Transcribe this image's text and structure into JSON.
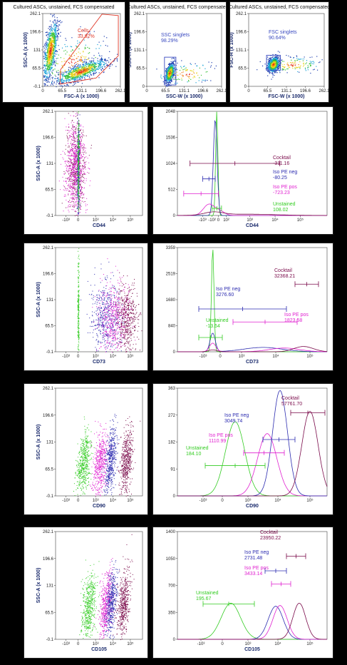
{
  "colors": {
    "cocktail": "#7a0a4a",
    "iso_neg": "#2c2cb0",
    "iso_pos": "#e020d0",
    "unstained": "#33cc22",
    "gate": "#e03a2a",
    "gate_blue": "#3a4ac0"
  },
  "chart_data": [
    {
      "type": "scatter",
      "title": "Cultured ASCs, unstained, FCS compensated",
      "xlabel": "FSC-A (x 1000)",
      "ylabel": "SSC-A (x 1000)",
      "xticks": [
        "0",
        "65.5",
        "131.1",
        "196.6",
        "262.1"
      ],
      "yticks": [
        "-0.1",
        "65.5",
        "131",
        "196.6",
        "262.1"
      ],
      "xlim": [
        0,
        262.1
      ],
      "ylim": [
        -0.1,
        262.1
      ],
      "gate": {
        "label": "Cells",
        "percent": "33.92%"
      }
    },
    {
      "type": "scatter",
      "title": "Cultured ASCs, unstained, FCS compensated",
      "xlabel": "SSC-W (x 1000)",
      "ylabel": "SSC-H (x 1000)",
      "xticks": [
        "0",
        "65.5",
        "131.1",
        "196.6",
        "262.1"
      ],
      "yticks": [
        "0",
        "65.5",
        "131.1",
        "196.6",
        "262.1"
      ],
      "xlim": [
        0,
        262.1
      ],
      "ylim": [
        0,
        262.1
      ],
      "gate": {
        "label": "SSC singlets",
        "percent": "98.29%"
      }
    },
    {
      "type": "scatter",
      "title": "Cultured ASCs, unstained, FCS compensated",
      "xlabel": "FSC-W (x 1000)",
      "ylabel": "FSC-H (x 1000)",
      "xticks": [
        "0",
        "65.5",
        "131.1",
        "196.6",
        "262.1"
      ],
      "yticks": [
        "0",
        "65.5",
        "131.1",
        "196.6",
        "262.1"
      ],
      "xlim": [
        0,
        262.1
      ],
      "ylim": [
        0,
        262.1
      ],
      "gate": {
        "label": "FSC singlets",
        "percent": "90.64%"
      }
    },
    {
      "type": "scatter",
      "marker": "CD44",
      "xlabel": "CD44",
      "ylabel": "SSC-A (x 1000)",
      "xticks": [
        "-10³",
        "0",
        "10³",
        "10⁴",
        "10⁵"
      ],
      "yticks": [
        "-0.1",
        "65.5",
        "131",
        "196.6",
        "262.1"
      ],
      "ylim": [
        -0.1,
        262.1
      ],
      "series": [
        {
          "name": "Cocktail",
          "center_log": 1.9,
          "spread": 0.35
        },
        {
          "name": "Iso PE pos",
          "center_log": 1.5,
          "spread": 0.4
        },
        {
          "name": "Iso PE neg",
          "center_log": 2.0,
          "spread": 0.1
        },
        {
          "name": "Unstained",
          "center_log": 2.0,
          "spread": 0.06
        }
      ]
    },
    {
      "type": "histogram",
      "marker": "CD44",
      "xlabel": "CD44",
      "xticks": [
        "-10³",
        "-10²",
        "0",
        "10²",
        "10³",
        "10⁴",
        "10⁵"
      ],
      "yticks": [
        "0",
        "512",
        "1024",
        "1536",
        "2048"
      ],
      "ylim": [
        0,
        2048
      ],
      "series": [
        {
          "name": "Cocktail",
          "value": "-311.16",
          "bar": [
            -3.2,
            2.5
          ],
          "bar_y": 1024
        },
        {
          "name": "Iso PE neg",
          "value": "-80.25",
          "bar": [
            -2.4,
            -1.6
          ],
          "bar_y": 720
        },
        {
          "name": "Iso PE pos",
          "value": "-723.23",
          "bar": [
            -3.6,
            -1.4
          ],
          "bar_y": 430
        },
        {
          "name": "Unstained",
          "value": "108.02",
          "bar": [
            -1.8,
            -1.2
          ],
          "bar_y": 140
        }
      ]
    },
    {
      "type": "scatter",
      "marker": "CD73",
      "xlabel": "CD73",
      "ylabel": "SSC-A (x 1000)",
      "xticks": [
        "-10³",
        "0",
        "10³",
        "10⁴",
        "10⁵"
      ],
      "yticks": [
        "-0.1",
        "65.5",
        "131",
        "196.6",
        "262.1"
      ],
      "ylim": [
        -0.1,
        262.1
      ]
    },
    {
      "type": "histogram",
      "marker": "CD73",
      "xlabel": "CD73",
      "xticks": [
        "-10³",
        "0",
        "10³",
        "10⁴",
        "10⁵"
      ],
      "yticks": [
        "0",
        "840",
        "1680",
        "2519",
        "3359"
      ],
      "ylim": [
        0,
        3359
      ],
      "series": [
        {
          "name": "Cocktail",
          "value": "32368.21",
          "bar": [
            3.9,
            5.0
          ],
          "bar_y": 2180
        },
        {
          "name": "Iso PE neg",
          "value": "3276.60",
          "bar": [
            -0.6,
            3.5
          ],
          "bar_y": 1380
        },
        {
          "name": "Iso PE pos",
          "value": "1823.58",
          "bar": [
            1.0,
            4.0
          ],
          "bar_y": 960
        },
        {
          "name": "Unstained",
          "value": "-13.64",
          "bar": [
            -0.6,
            0.5
          ],
          "bar_y": 460
        }
      ]
    },
    {
      "type": "scatter",
      "marker": "CD90",
      "xlabel": "CD90",
      "ylabel": "SSC-A (x 1000)",
      "xticks": [
        "-10³",
        "0",
        "10³",
        "10⁴",
        "10⁵"
      ],
      "yticks": [
        "-0.1",
        "65.5",
        "131",
        "196.6",
        "262.1"
      ],
      "ylim": [
        -0.1,
        262.1
      ]
    },
    {
      "type": "histogram",
      "marker": "CD90",
      "xlabel": "CD90",
      "xticks": [
        "-10³",
        "0",
        "10³",
        "10⁴",
        "10⁵"
      ],
      "yticks": [
        "0",
        "91",
        "182",
        "272",
        "363"
      ],
      "ylim": [
        0,
        363
      ],
      "series": [
        {
          "name": "Cocktail",
          "value": "57761.70",
          "bar": [
            3.8,
            5.4
          ],
          "bar_y": 280
        },
        {
          "name": "Iso PE neg",
          "value": "3049.74",
          "bar": [
            2.5,
            4.0
          ],
          "bar_y": 190
        },
        {
          "name": "Iso PE pos",
          "value": "1110.99",
          "bar": [
            1.6,
            3.5
          ],
          "bar_y": 145
        },
        {
          "name": "Unstained",
          "value": "184.10",
          "bar": [
            -0.2,
            2.6
          ],
          "bar_y": 102
        }
      ]
    },
    {
      "type": "scatter",
      "marker": "CD105",
      "xlabel": "CD105",
      "ylabel": "SSC-A (x 1000)",
      "xticks": [
        "-10³",
        "0",
        "10³",
        "10⁴",
        "10⁵"
      ],
      "yticks": [
        "-0.1",
        "65.5",
        "131",
        "196.6",
        "262.1"
      ],
      "ylim": [
        -0.1,
        262.1
      ]
    },
    {
      "type": "histogram",
      "marker": "CD105",
      "xlabel": "CD105",
      "xticks": [
        "-10³",
        "0",
        "10³",
        "10⁴",
        "10⁵"
      ],
      "yticks": [
        "0",
        "350",
        "700",
        "1050",
        "1400"
      ],
      "ylim": [
        0,
        1400
      ],
      "series": [
        {
          "name": "Cocktail",
          "value": "23950.22",
          "bar": [
            3.6,
            4.5
          ],
          "bar_y": 1080
        },
        {
          "name": "Iso PE neg",
          "value": "2731.48",
          "bar": [
            2.6,
            3.6
          ],
          "bar_y": 890
        },
        {
          "name": "Iso PE pos",
          "value": "3433.14",
          "bar": [
            2.9,
            3.8
          ],
          "bar_y": 720
        },
        {
          "name": "Unstained",
          "value": "195.67",
          "bar": [
            -0.3,
            2.1
          ],
          "bar_y": 460
        }
      ]
    }
  ]
}
